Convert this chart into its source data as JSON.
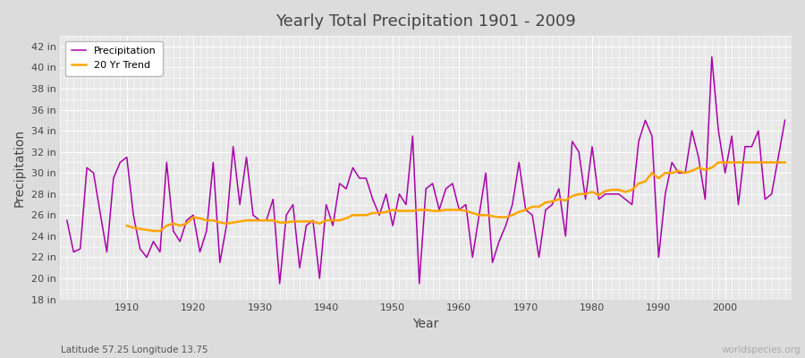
{
  "title": "Yearly Total Precipitation 1901 - 2009",
  "xlabel": "Year",
  "ylabel": "Precipitation",
  "subtitle": "Latitude 57.25 Longitude 13.75",
  "watermark": "worldspecies.org",
  "ylim": [
    18,
    43
  ],
  "yticks": [
    18,
    20,
    22,
    24,
    26,
    28,
    30,
    32,
    34,
    36,
    38,
    40,
    42
  ],
  "xlim": [
    1900,
    2010
  ],
  "bg_color": "#dcdcdc",
  "plot_bg_color": "#e8e8e8",
  "grid_color": "#ffffff",
  "precip_color": "#aa00aa",
  "trend_color": "#FFA500",
  "xticks": [
    1910,
    1920,
    1930,
    1940,
    1950,
    1960,
    1970,
    1980,
    1990,
    2000
  ],
  "years": [
    1901,
    1902,
    1903,
    1904,
    1905,
    1906,
    1907,
    1908,
    1909,
    1910,
    1911,
    1912,
    1913,
    1914,
    1915,
    1916,
    1917,
    1918,
    1919,
    1920,
    1921,
    1922,
    1923,
    1924,
    1925,
    1926,
    1927,
    1928,
    1929,
    1930,
    1931,
    1932,
    1933,
    1934,
    1935,
    1936,
    1937,
    1938,
    1939,
    1940,
    1941,
    1942,
    1943,
    1944,
    1945,
    1946,
    1947,
    1948,
    1949,
    1950,
    1951,
    1952,
    1953,
    1954,
    1955,
    1956,
    1957,
    1958,
    1959,
    1960,
    1961,
    1962,
    1963,
    1964,
    1965,
    1966,
    1967,
    1968,
    1969,
    1970,
    1971,
    1972,
    1973,
    1974,
    1975,
    1976,
    1977,
    1978,
    1979,
    1980,
    1981,
    1982,
    1983,
    1984,
    1985,
    1986,
    1987,
    1988,
    1989,
    1990,
    1991,
    1992,
    1993,
    1994,
    1995,
    1996,
    1997,
    1998,
    1999,
    2000,
    2001,
    2002,
    2003,
    2004,
    2005,
    2006,
    2007,
    2008,
    2009
  ],
  "precip": [
    25.5,
    22.5,
    22.8,
    30.5,
    30.0,
    26.2,
    22.5,
    29.5,
    31.0,
    31.5,
    26.0,
    22.8,
    22.0,
    23.5,
    22.5,
    31.0,
    24.5,
    23.5,
    25.5,
    26.0,
    22.5,
    24.5,
    31.0,
    21.5,
    25.0,
    32.5,
    27.0,
    31.5,
    26.0,
    25.5,
    25.5,
    27.5,
    19.5,
    26.0,
    27.0,
    21.0,
    25.0,
    25.5,
    20.0,
    27.0,
    25.0,
    29.0,
    28.5,
    30.5,
    29.5,
    29.5,
    27.5,
    26.0,
    28.0,
    25.0,
    28.0,
    27.0,
    33.5,
    19.5,
    28.5,
    29.0,
    26.5,
    28.5,
    29.0,
    26.5,
    27.0,
    22.0,
    26.0,
    30.0,
    21.5,
    23.5,
    25.0,
    27.0,
    31.0,
    26.5,
    26.0,
    22.0,
    26.5,
    27.0,
    28.5,
    24.0,
    33.0,
    32.0,
    27.5,
    32.5,
    27.5,
    28.0,
    28.0,
    28.0,
    27.5,
    27.0,
    33.0,
    35.0,
    33.5,
    22.0,
    28.0,
    31.0,
    30.0,
    30.0,
    34.0,
    31.5,
    27.5,
    41.0,
    34.0,
    30.0,
    33.5,
    27.0,
    32.5,
    32.5,
    34.0,
    27.5,
    28.0,
    31.5,
    35.0
  ],
  "trend": [
    null,
    null,
    null,
    null,
    null,
    null,
    null,
    null,
    null,
    25.0,
    24.8,
    24.7,
    24.6,
    24.5,
    24.5,
    25.0,
    25.2,
    25.0,
    25.2,
    25.8,
    25.7,
    25.5,
    25.5,
    25.3,
    25.2,
    25.3,
    25.4,
    25.5,
    25.5,
    25.5,
    25.5,
    25.5,
    25.3,
    25.3,
    25.4,
    25.4,
    25.4,
    25.4,
    25.2,
    25.5,
    25.5,
    25.5,
    25.7,
    26.0,
    26.0,
    26.0,
    26.2,
    26.2,
    26.3,
    26.5,
    26.4,
    26.4,
    26.4,
    26.5,
    26.5,
    26.4,
    26.4,
    26.5,
    26.5,
    26.5,
    26.4,
    26.2,
    26.0,
    26.0,
    25.9,
    25.8,
    25.8,
    26.0,
    26.3,
    26.5,
    26.8,
    26.8,
    27.2,
    27.3,
    27.5,
    27.4,
    27.8,
    28.0,
    28.0,
    28.2,
    27.9,
    28.3,
    28.4,
    28.4,
    28.2,
    28.4,
    29.0,
    29.2,
    30.0,
    29.5,
    30.0,
    30.0,
    30.2,
    30.0,
    30.2,
    30.5,
    30.3,
    30.5,
    31.0,
    31.0,
    31.0,
    31.0,
    31.0,
    31.0,
    31.0,
    31.0,
    31.0,
    31.0,
    31.0
  ]
}
